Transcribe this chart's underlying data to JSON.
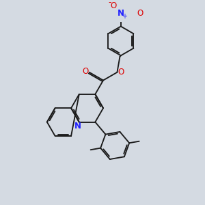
{
  "background_color": "#d4dae2",
  "bond_color": "#1a1a1a",
  "nitrogen_color": "#2020ff",
  "oxygen_color": "#dd0000",
  "figsize": [
    3.0,
    3.0
  ],
  "dpi": 100,
  "bond_lw": 1.35,
  "xlim": [
    0,
    10
  ],
  "ylim": [
    0,
    10
  ]
}
